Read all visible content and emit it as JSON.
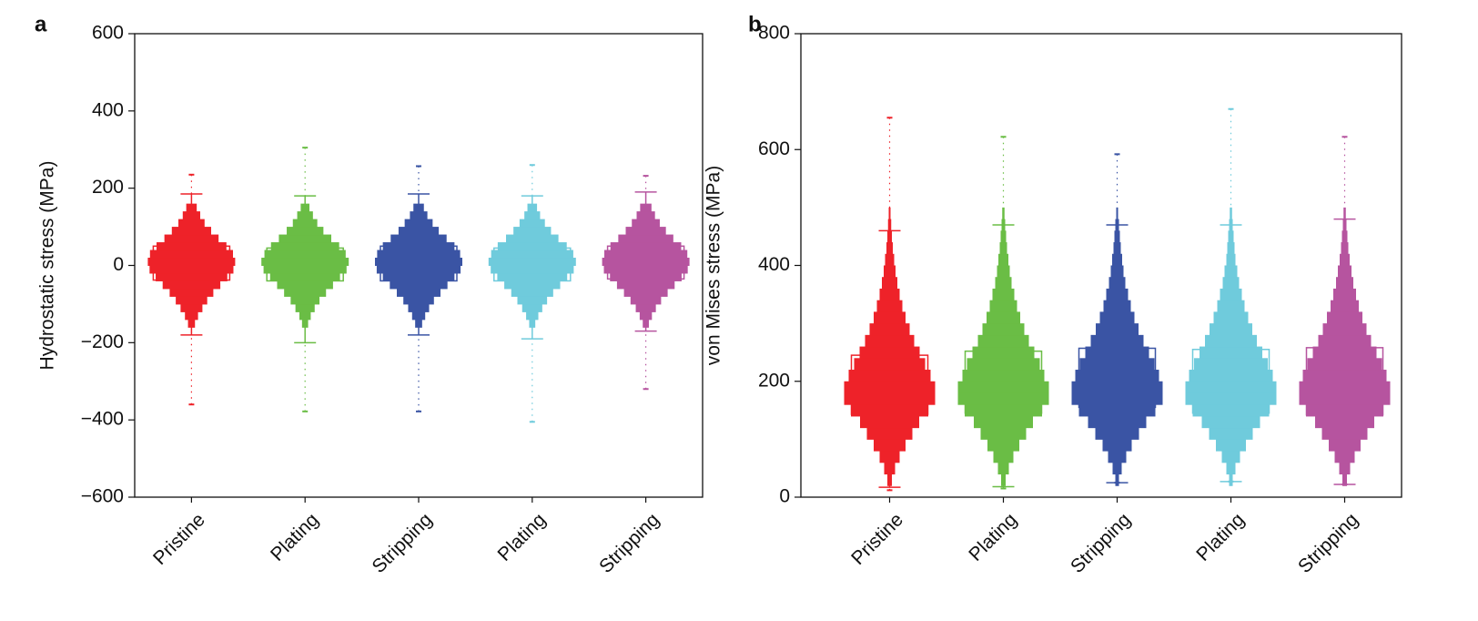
{
  "chart_data": [
    {
      "type": "violin",
      "panel_label": "a",
      "y_label": "Hydrostatic stress (MPa)",
      "ylim": [
        -600,
        600
      ],
      "yticks": [
        {
          "value": -600,
          "label": "−600"
        },
        {
          "value": -400,
          "label": "−400"
        },
        {
          "value": -200,
          "label": "−200"
        },
        0,
        200,
        400,
        600
      ],
      "categories": [
        "Pristine",
        "Plating",
        "Stripping",
        "Plating",
        "Stripping"
      ],
      "bins": [
        -160,
        -140,
        -120,
        -100,
        -80,
        -60,
        -40,
        -20,
        0,
        20,
        40,
        60,
        80,
        100,
        120,
        140,
        160
      ],
      "series": [
        {
          "color": "#ee2229",
          "density": [
            0.08,
            0.15,
            0.25,
            0.36,
            0.5,
            0.66,
            0.82,
            0.96,
            1,
            0.95,
            0.8,
            0.62,
            0.45,
            0.3,
            0.2,
            0.12
          ],
          "box": [
            -38,
            50
          ],
          "whiskers": [
            -180,
            185
          ],
          "extremes": [
            -360,
            235
          ]
        },
        {
          "color": "#6abd45",
          "density": [
            0.07,
            0.13,
            0.22,
            0.33,
            0.48,
            0.64,
            0.8,
            0.95,
            1,
            0.93,
            0.78,
            0.6,
            0.42,
            0.28,
            0.18,
            0.1
          ],
          "box": [
            -40,
            45
          ],
          "whiskers": [
            -200,
            180
          ],
          "extremes": [
            -378,
            305
          ]
        },
        {
          "color": "#3a54a4",
          "density": [
            0.08,
            0.15,
            0.24,
            0.35,
            0.5,
            0.66,
            0.82,
            0.96,
            1,
            0.95,
            0.82,
            0.64,
            0.46,
            0.32,
            0.2,
            0.12
          ],
          "box": [
            -40,
            50
          ],
          "whiskers": [
            -180,
            185
          ],
          "extremes": [
            -378,
            257
          ]
        },
        {
          "color": "#6fcbdc",
          "density": [
            0.07,
            0.14,
            0.23,
            0.34,
            0.48,
            0.64,
            0.8,
            0.95,
            1,
            0.94,
            0.79,
            0.6,
            0.43,
            0.29,
            0.18,
            0.11
          ],
          "box": [
            -40,
            45
          ],
          "whiskers": [
            -190,
            180
          ],
          "extremes": [
            -405,
            260
          ]
        },
        {
          "color": "#b6549f",
          "density": [
            0.07,
            0.14,
            0.23,
            0.35,
            0.5,
            0.66,
            0.82,
            0.96,
            1,
            0.95,
            0.81,
            0.63,
            0.46,
            0.32,
            0.21,
            0.13
          ],
          "box": [
            -35,
            50
          ],
          "whiskers": [
            -170,
            190
          ],
          "extremes": [
            -320,
            232
          ]
        }
      ]
    },
    {
      "type": "violin",
      "panel_label": "b",
      "y_label": "von Mises stress (MPa)",
      "ylim": [
        0,
        800
      ],
      "yticks": [
        0,
        200,
        400,
        600,
        800
      ],
      "categories": [
        "Pristine",
        "Plating",
        "Stripping",
        "Plating",
        "Stripping"
      ],
      "bins": [
        20,
        40,
        60,
        80,
        100,
        120,
        140,
        160,
        180,
        200,
        220,
        240,
        260,
        280,
        300,
        320,
        340,
        360,
        380,
        400,
        420,
        440,
        460,
        480,
        500
      ],
      "series": [
        {
          "color": "#ee2229",
          "density": [
            0.05,
            0.12,
            0.22,
            0.35,
            0.5,
            0.65,
            0.85,
            1,
            1,
            0.9,
            0.78,
            0.66,
            0.54,
            0.44,
            0.35,
            0.28,
            0.22,
            0.17,
            0.13,
            0.1,
            0.07,
            0.05,
            0.035,
            0.02
          ],
          "box": [
            143,
            245
          ],
          "whiskers": [
            17,
            460
          ],
          "extremes": [
            12,
            655
          ]
        },
        {
          "color": "#6abd45",
          "density": [
            0.05,
            0.12,
            0.22,
            0.35,
            0.5,
            0.65,
            0.85,
            1,
            1,
            0.9,
            0.8,
            0.68,
            0.56,
            0.46,
            0.37,
            0.3,
            0.24,
            0.18,
            0.14,
            0.11,
            0.08,
            0.06,
            0.04,
            0.025
          ],
          "box": [
            145,
            252
          ],
          "whiskers": [
            18,
            470
          ],
          "extremes": [
            15,
            622
          ]
        },
        {
          "color": "#3a54a4",
          "density": [
            0.04,
            0.1,
            0.2,
            0.32,
            0.48,
            0.64,
            0.84,
            1,
            1,
            0.92,
            0.82,
            0.7,
            0.58,
            0.47,
            0.38,
            0.3,
            0.24,
            0.18,
            0.14,
            0.11,
            0.08,
            0.06,
            0.04,
            0.02
          ],
          "box": [
            155,
            257
          ],
          "whiskers": [
            25,
            470
          ],
          "extremes": [
            25,
            592
          ]
        },
        {
          "color": "#6fcbdc",
          "density": [
            0.04,
            0.1,
            0.2,
            0.33,
            0.48,
            0.64,
            0.84,
            1,
            1,
            0.92,
            0.81,
            0.69,
            0.57,
            0.47,
            0.38,
            0.3,
            0.24,
            0.18,
            0.14,
            0.1,
            0.08,
            0.06,
            0.04,
            0.025
          ],
          "box": [
            145,
            255
          ],
          "whiskers": [
            27,
            470
          ],
          "extremes": [
            27,
            670
          ]
        },
        {
          "color": "#b6549f",
          "density": [
            0.05,
            0.12,
            0.22,
            0.35,
            0.5,
            0.65,
            0.85,
            1,
            1,
            0.92,
            0.82,
            0.7,
            0.58,
            0.48,
            0.39,
            0.31,
            0.25,
            0.19,
            0.15,
            0.11,
            0.08,
            0.06,
            0.04,
            0.025
          ],
          "box": [
            142,
            258
          ],
          "whiskers": [
            22,
            480
          ],
          "extremes": [
            22,
            622
          ]
        }
      ]
    }
  ]
}
